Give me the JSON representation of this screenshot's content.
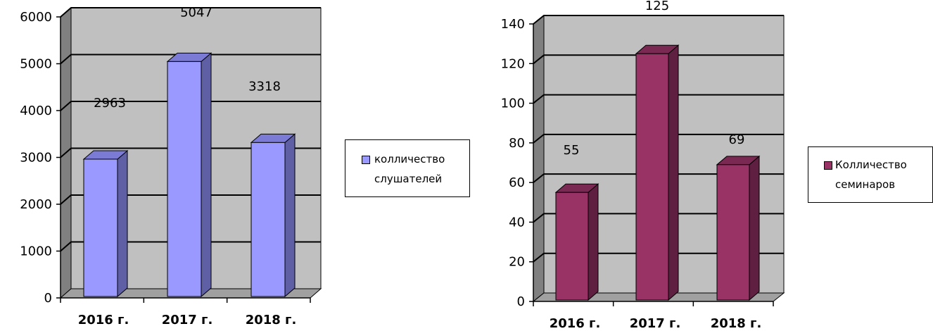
{
  "charts": [
    {
      "chart_data": {
        "type": "bar",
        "categories": [
          "2016 г.",
          "2017 г.",
          "2018 г."
        ],
        "series": [
          {
            "name": "колличество слушателей",
            "values": [
              2963,
              5047,
              3318
            ]
          }
        ],
        "data_labels": [
          "2963",
          "5047",
          "3318"
        ],
        "ylim": [
          0,
          6000
        ],
        "yticks": [
          0,
          1000,
          2000,
          3000,
          4000,
          5000,
          6000
        ],
        "grid": true,
        "style": "3d-column",
        "legend_position": "right"
      },
      "colors": {
        "bar_front": "#9999ff",
        "bar_side": "#5f5fa6",
        "bar_top": "#7b7bd6"
      },
      "legend": {
        "line1": "колличество",
        "line2": "слушателей"
      }
    },
    {
      "chart_data": {
        "type": "bar",
        "categories": [
          "2016 г.",
          "2017 г.",
          "2018 г."
        ],
        "series": [
          {
            "name": "Колличество семинаров",
            "values": [
              55,
              125,
              69
            ]
          }
        ],
        "data_labels": [
          "55",
          "125",
          "69"
        ],
        "ylim": [
          0,
          140
        ],
        "yticks": [
          0,
          20,
          40,
          60,
          80,
          100,
          120,
          140
        ],
        "grid": true,
        "style": "3d-column",
        "legend_position": "right"
      },
      "colors": {
        "bar_front": "#993366",
        "bar_side": "#5e1f40",
        "bar_top": "#7a2952"
      },
      "legend": {
        "line1": "Колличество",
        "line2": "семинаров"
      }
    }
  ],
  "colors": {
    "wall": "#c0c0c0",
    "wall_side": "#808080",
    "floor": "#a0a0a0",
    "grid": "#000000"
  }
}
